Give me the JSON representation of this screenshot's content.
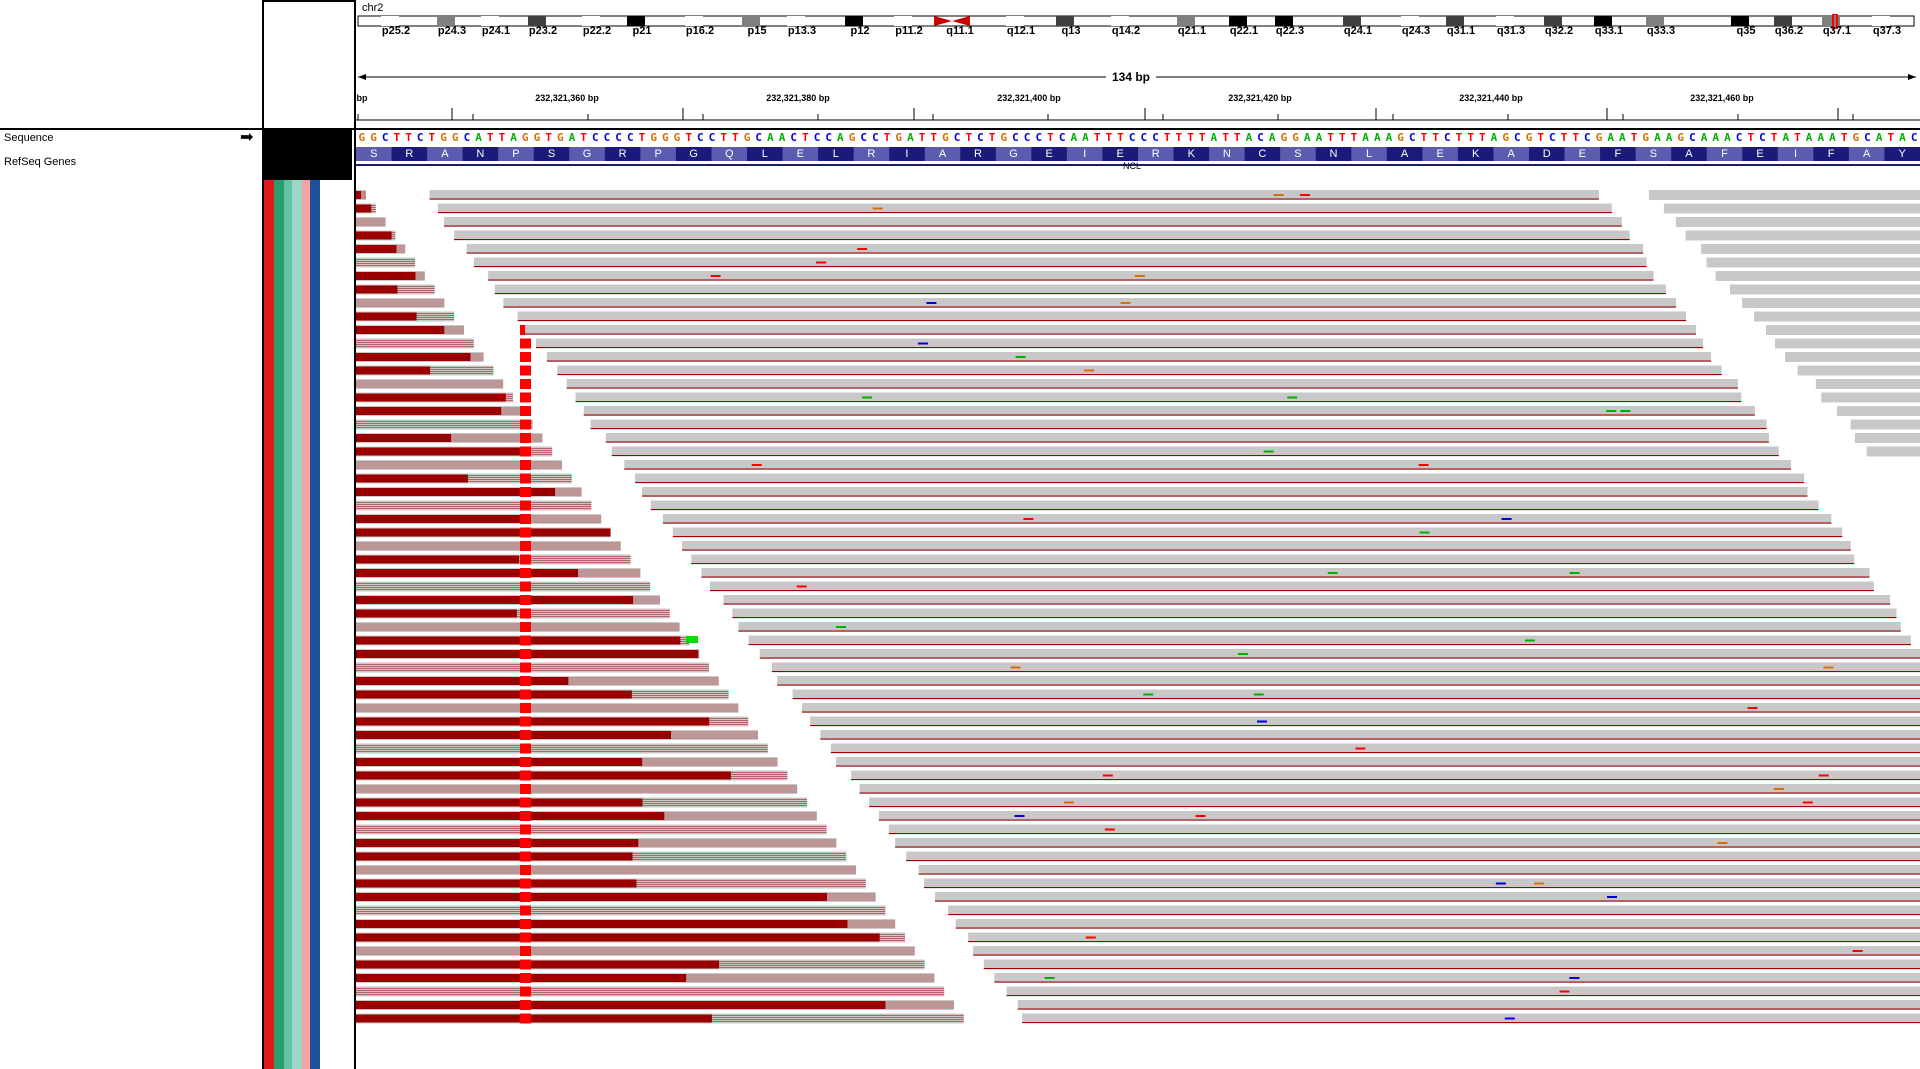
{
  "tracks": {
    "sequence": "Sequence",
    "refseq": "RefSeq Genes"
  },
  "chromosome": "chr2",
  "cytobands": [
    "p25.2",
    "p24.3",
    "p24.1",
    "p23.2",
    "p22.2",
    "p21",
    "p16.2",
    "p15",
    "p13.3",
    "p12",
    "p11.2",
    "q11.1",
    "q12.1",
    "q13",
    "q14.2",
    "q21.1",
    "q22.1",
    "q22.3",
    "q24.1",
    "q24.3",
    "q31.1",
    "q31.3",
    "q32.2",
    "q33.1",
    "q33.3",
    "q35",
    "q36.2",
    "q37.1",
    "q37.3"
  ],
  "ruler": {
    "span": "134 bp",
    "edge_label": "bp",
    "ticks": [
      "232,321,360 bp",
      "232,321,380 bp",
      "232,321,400 bp",
      "232,321,420 bp",
      "232,321,440 bp",
      "232,321,460 bp"
    ]
  },
  "sequence": "GGCTTCTGGCATTAGGTGATCCCCTGGGTCCTTGCAACTCCAGCCTGATTGCTCTGCCCTCAATTTCCCTTTTATTACAGGAATTTAAAGCTTCTTTAGCGTCTTCGAATGAAGCAAACTCTATAAATGCATAC",
  "translation": [
    "S",
    "R",
    "A",
    "N",
    "P",
    "S",
    "G",
    "R",
    "P",
    "G",
    "Q",
    "L",
    "E",
    "L",
    "R",
    "I",
    "A",
    "R",
    "G",
    "E",
    "I",
    "E",
    "R",
    "K",
    "N",
    "C",
    "S",
    "N",
    "L",
    "A",
    "E",
    "K",
    "A",
    "D",
    "E",
    "F",
    "S",
    "A",
    "F",
    "E",
    "I",
    "F",
    "A",
    "Y"
  ],
  "gene": "NCL",
  "colors": {
    "A": "#00b000",
    "C": "#0000e0",
    "G": "#d17105",
    "T": "#ff0000",
    "read": "#c8c8c8",
    "softclip": "#9b0000",
    "aa_dark": "#1a1a7a",
    "aa_light": "#5b5bb0",
    "attributes": [
      "#e31a1c",
      "#2a9d6f",
      "#66c2a4",
      "#99d8c9",
      "#f4a3a3",
      "#1f4e9c",
      "#ffffff"
    ]
  }
}
